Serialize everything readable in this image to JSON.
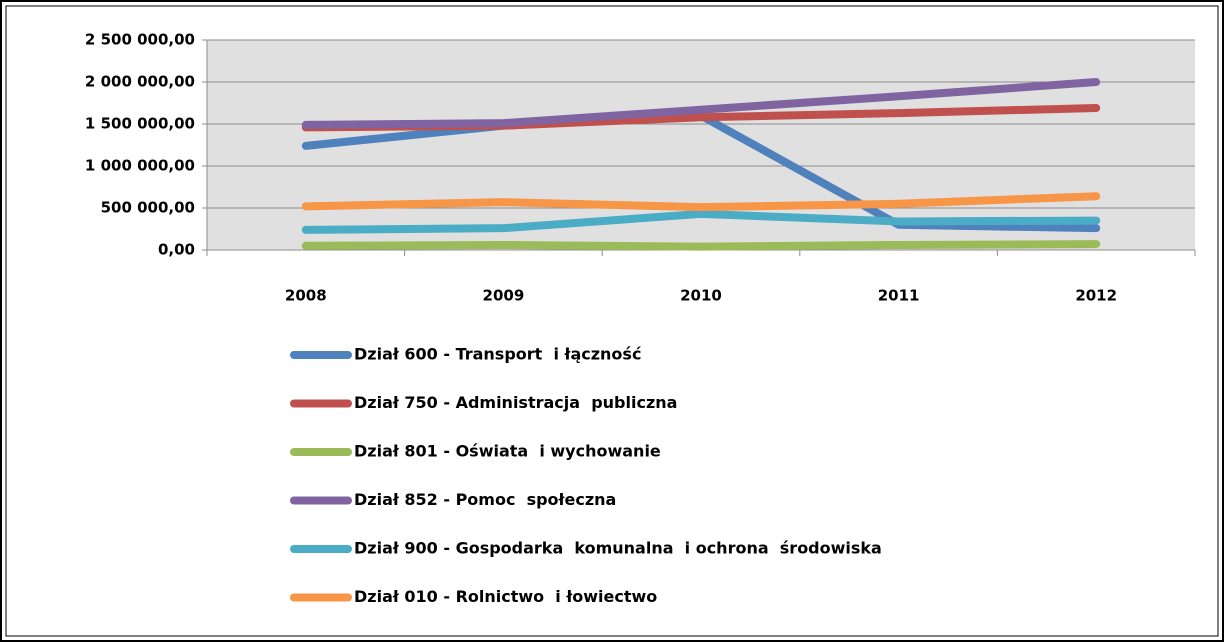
{
  "chart_data": {
    "type": "line",
    "categories": [
      "2008",
      "2009",
      "2010",
      "2011",
      "2012"
    ],
    "series": [
      {
        "name": "Dział 600 - Transport  i łączność",
        "color": "#4f81bd",
        "values": [
          1240000,
          1480000,
          1600000,
          300000,
          260000
        ]
      },
      {
        "name": "Dział 750 - Administracja  publiczna",
        "color": "#c0504d",
        "values": [
          1460000,
          1480000,
          1580000,
          1630000,
          1690000
        ]
      },
      {
        "name": "Dział 801 - Oświata  i wychowanie",
        "color": "#9bbb59",
        "values": [
          50000,
          60000,
          40000,
          60000,
          70000
        ]
      },
      {
        "name": "Dział 852 - Pomoc  społeczna",
        "color": "#8064a2",
        "values": [
          1490000,
          1510000,
          1670000,
          1830000,
          2000000
        ]
      },
      {
        "name": "Dział 900 - Gospodarka  komunalna  i ochrona  środowiska",
        "color": "#4bacc6",
        "values": [
          240000,
          260000,
          430000,
          340000,
          350000
        ]
      },
      {
        "name": "Dział 010 - Rolnictwo  i łowiectwo",
        "color": "#f79646",
        "values": [
          520000,
          570000,
          510000,
          550000,
          640000
        ]
      }
    ],
    "ylim": [
      0,
      2500000
    ],
    "yticks": [
      {
        "value": 0,
        "label": "0,00"
      },
      {
        "value": 500000,
        "label": "500 000,00"
      },
      {
        "value": 1000000,
        "label": "1 000 000,00"
      },
      {
        "value": 1500000,
        "label": "1 500 000,00"
      },
      {
        "value": 2000000,
        "label": "2 000 000,00"
      },
      {
        "value": 2500000,
        "label": "2 500 000,00"
      }
    ],
    "grid": true,
    "legend": "bottom"
  }
}
